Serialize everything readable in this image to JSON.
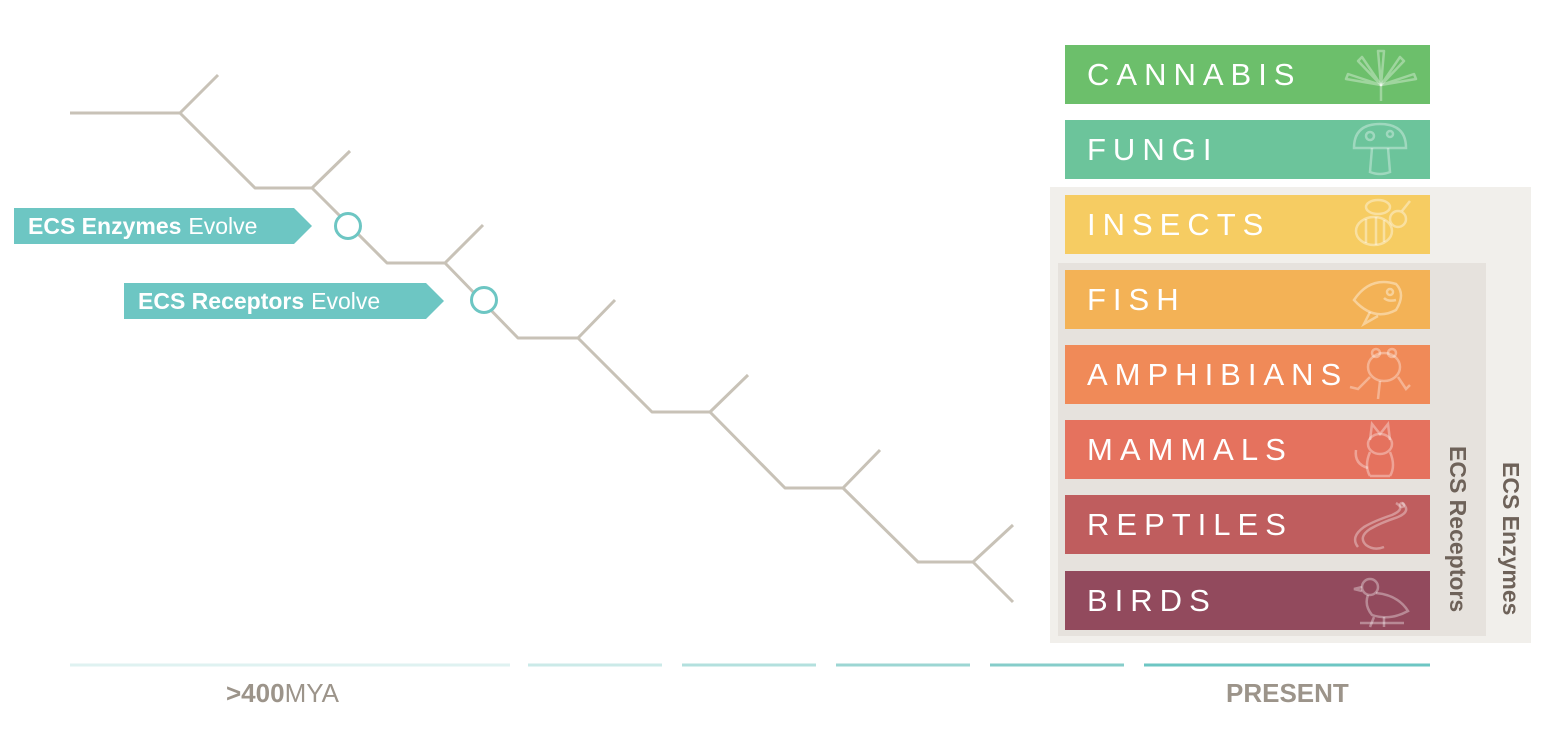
{
  "markers": {
    "enzymes": {
      "bold": "ECS Enzymes",
      "light": "Evolve"
    },
    "receptors": {
      "bold": "ECS Receptors",
      "light": "Evolve"
    }
  },
  "taxa": [
    {
      "label": "CANNABIS",
      "color": "#6cbf6b",
      "icon": "cannabis-leaf-icon"
    },
    {
      "label": "FUNGI",
      "color": "#6cc49b",
      "icon": "mushroom-icon"
    },
    {
      "label": "INSECTS",
      "color": "#f6cc62",
      "icon": "bee-icon"
    },
    {
      "label": "FISH",
      "color": "#f3b256",
      "icon": "fish-icon"
    },
    {
      "label": "AMPHIBIANS",
      "color": "#f08a58",
      "icon": "frog-icon"
    },
    {
      "label": "MAMMALS",
      "color": "#e5725e",
      "icon": "cat-icon"
    },
    {
      "label": "REPTILES",
      "color": "#bf5d5e",
      "icon": "snake-icon"
    },
    {
      "label": "BIRDS",
      "color": "#924a5d",
      "icon": "bird-icon"
    }
  ],
  "brackets": {
    "receptors": "ECS Receptors",
    "enzymes": "ECS Enzymes"
  },
  "timeline": {
    "start_bold": ">400",
    "start_unit": "MYA",
    "end": "PRESENT"
  },
  "colors": {
    "tree_line": "#c8c2b7",
    "marker": "#6dc6c3",
    "axis_text": "#9c948a",
    "bracket_text": "#6e6259"
  }
}
